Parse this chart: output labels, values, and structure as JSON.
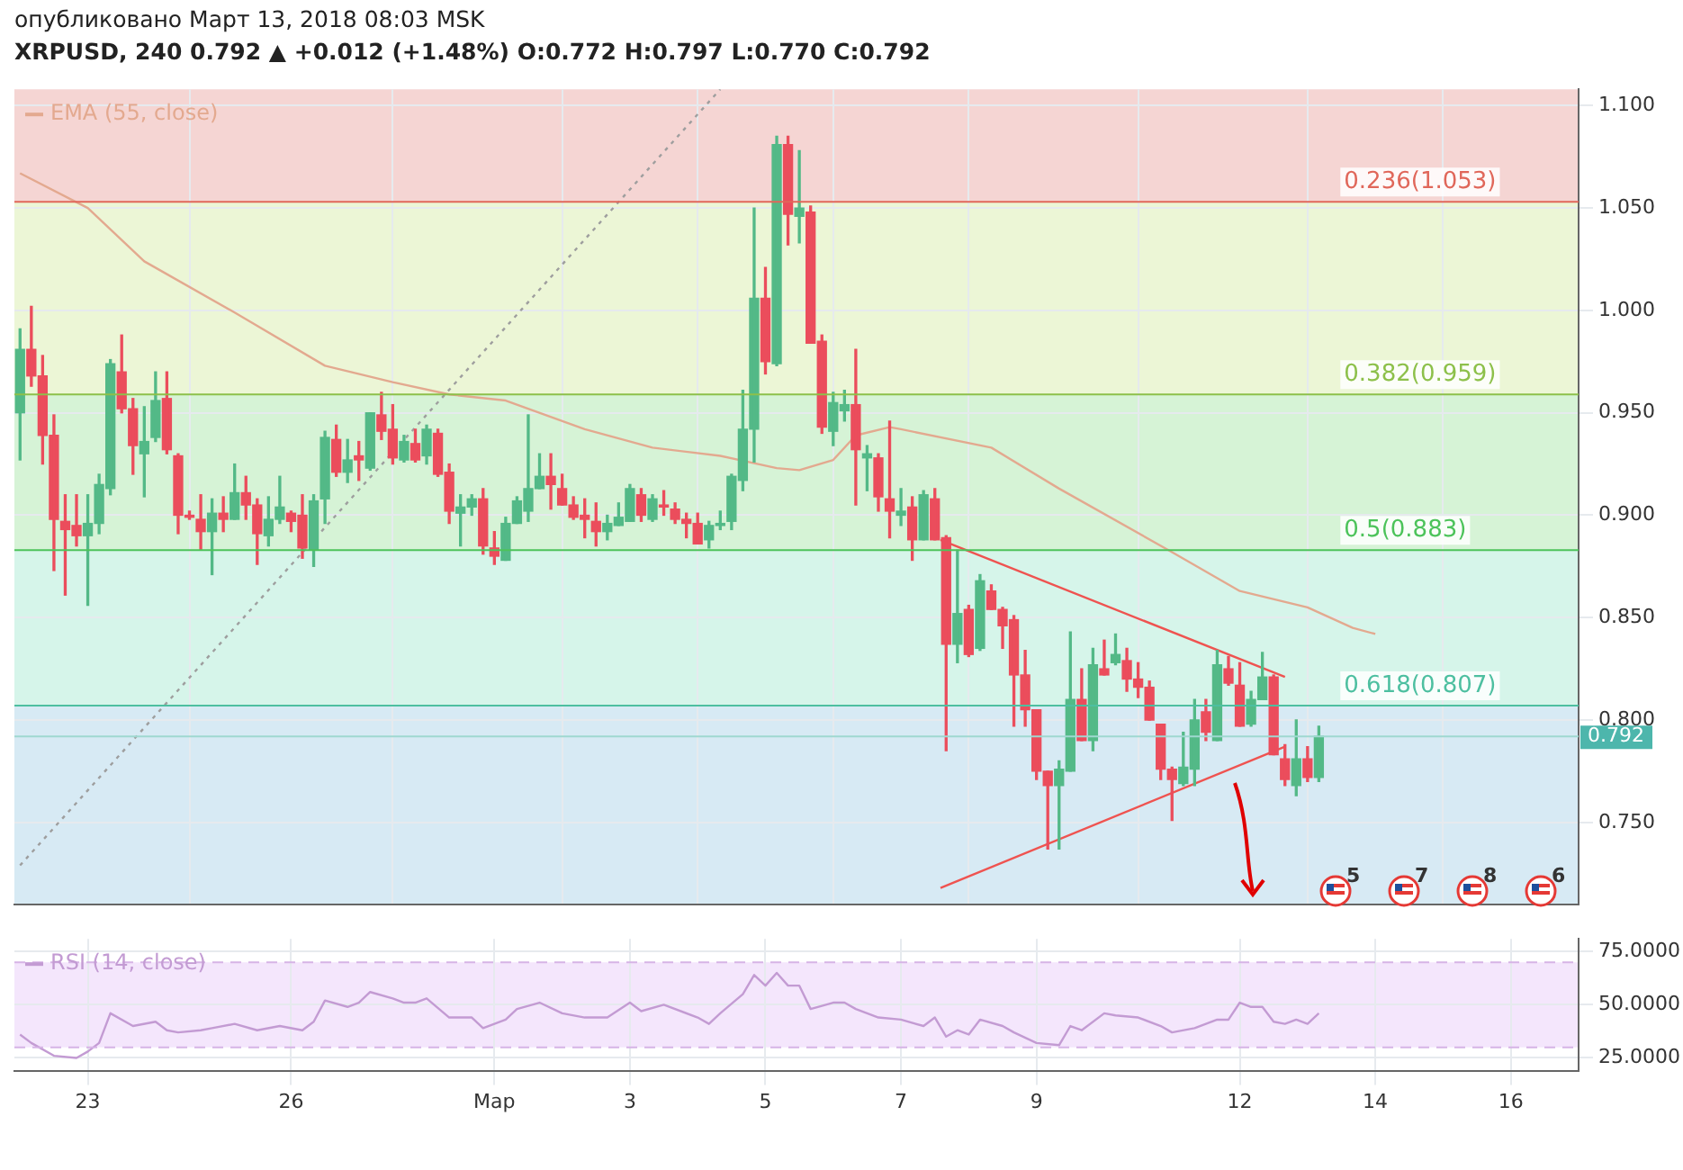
{
  "chart_data": [
    {
      "type": "candlestick",
      "subtitle": "опубликовано Март 13, 2018 08:03 MSK",
      "title": "XRPUSD, 240 0.792 ▲ +0.012 (+1.48%) O:0.772 H:0.797 L:0.770 C:0.792",
      "annotations": [
        "5",
        "7",
        "8",
        "6",
        {
          "text": "0.792",
          "y": 0.792
        }
      ],
      "x": [
        "2018-02-22T00:00",
        "2018-02-22T04:00",
        "2018-02-22T08:00",
        "2018-02-22T12:00",
        "2018-02-22T16:00",
        "2018-02-22T20:00",
        "2018-02-23T00:00",
        "2018-02-23T04:00",
        "2018-02-23T08:00",
        "2018-02-23T12:00",
        "2018-02-23T16:00",
        "2018-02-23T20:00",
        "2018-02-24T00:00",
        "2018-02-24T04:00",
        "2018-02-24T08:00",
        "2018-02-24T12:00",
        "2018-02-24T16:00",
        "2018-02-24T20:00",
        "2018-02-25T00:00",
        "2018-02-25T04:00",
        "2018-02-25T08:00",
        "2018-02-25T12:00",
        "2018-02-25T16:00",
        "2018-02-25T20:00",
        "2018-02-26T00:00",
        "2018-02-26T04:00",
        "2018-02-26T08:00",
        "2018-02-26T12:00",
        "2018-02-26T16:00",
        "2018-02-26T20:00",
        "2018-02-27T00:00",
        "2018-02-27T04:00",
        "2018-02-27T08:00",
        "2018-02-27T12:00",
        "2018-02-27T16:00",
        "2018-02-27T20:00",
        "2018-02-28T00:00",
        "2018-02-28T04:00",
        "2018-02-28T08:00",
        "2018-02-28T12:00",
        "2018-02-28T16:00",
        "2018-02-28T20:00",
        "2018-03-01T00:00",
        "2018-03-01T04:00",
        "2018-03-01T08:00",
        "2018-03-01T12:00",
        "2018-03-01T16:00",
        "2018-03-01T20:00",
        "2018-03-02T00:00",
        "2018-03-02T04:00",
        "2018-03-02T08:00",
        "2018-03-02T12:00",
        "2018-03-02T16:00",
        "2018-03-02T20:00",
        "2018-03-03T00:00",
        "2018-03-03T04:00",
        "2018-03-03T08:00",
        "2018-03-03T12:00",
        "2018-03-03T16:00",
        "2018-03-03T20:00",
        "2018-03-04T00:00",
        "2018-03-04T04:00",
        "2018-03-04T08:00",
        "2018-03-04T12:00",
        "2018-03-04T16:00",
        "2018-03-04T20:00",
        "2018-03-05T00:00",
        "2018-03-05T04:00",
        "2018-03-05T08:00",
        "2018-03-05T12:00",
        "2018-03-05T16:00",
        "2018-03-05T20:00",
        "2018-03-06T00:00",
        "2018-03-06T04:00",
        "2018-03-06T08:00",
        "2018-03-06T12:00",
        "2018-03-06T16:00",
        "2018-03-06T20:00",
        "2018-03-07T00:00",
        "2018-03-07T04:00",
        "2018-03-07T08:00",
        "2018-03-07T12:00",
        "2018-03-07T16:00",
        "2018-03-07T20:00",
        "2018-03-08T00:00",
        "2018-03-08T04:00",
        "2018-03-08T08:00",
        "2018-03-08T12:00",
        "2018-03-08T16:00",
        "2018-03-08T20:00",
        "2018-03-09T00:00",
        "2018-03-09T04:00",
        "2018-03-09T08:00",
        "2018-03-09T12:00",
        "2018-03-09T16:00",
        "2018-03-09T20:00",
        "2018-03-10T00:00",
        "2018-03-10T04:00",
        "2018-03-10T08:00",
        "2018-03-10T12:00",
        "2018-03-10T16:00",
        "2018-03-10T20:00",
        "2018-03-11T00:00",
        "2018-03-11T04:00",
        "2018-03-11T08:00",
        "2018-03-11T12:00",
        "2018-03-11T16:00",
        "2018-03-11T20:00",
        "2018-03-12T00:00",
        "2018-03-12T04:00",
        "2018-03-12T08:00",
        "2018-03-12T12:00",
        "2018-03-12T16:00",
        "2018-03-12T20:00",
        "2018-03-13T00:00",
        "2018-03-13T04:00"
      ],
      "ohlc": [
        [
          0.95,
          0.991,
          0.927,
          0.981
        ],
        [
          0.981,
          1.002,
          0.963,
          0.968
        ],
        [
          0.968,
          0.978,
          0.925,
          0.939
        ],
        [
          0.939,
          0.949,
          0.873,
          0.898
        ],
        [
          0.897,
          0.91,
          0.861,
          0.893
        ],
        [
          0.895,
          0.91,
          0.885,
          0.89
        ],
        [
          0.89,
          0.91,
          0.856,
          0.896
        ],
        [
          0.896,
          0.92,
          0.891,
          0.915
        ],
        [
          0.913,
          0.976,
          0.91,
          0.974
        ],
        [
          0.97,
          0.988,
          0.95,
          0.952
        ],
        [
          0.952,
          0.957,
          0.92,
          0.934
        ],
        [
          0.93,
          0.953,
          0.909,
          0.936
        ],
        [
          0.938,
          0.97,
          0.936,
          0.956
        ],
        [
          0.957,
          0.97,
          0.93,
          0.932
        ],
        [
          0.929,
          0.93,
          0.891,
          0.9
        ],
        [
          0.9,
          0.902,
          0.898,
          0.899
        ],
        [
          0.898,
          0.91,
          0.883,
          0.892
        ],
        [
          0.892,
          0.908,
          0.871,
          0.901
        ],
        [
          0.901,
          0.909,
          0.892,
          0.898
        ],
        [
          0.898,
          0.925,
          0.898,
          0.911
        ],
        [
          0.911,
          0.919,
          0.898,
          0.905
        ],
        [
          0.905,
          0.908,
          0.876,
          0.891
        ],
        [
          0.89,
          0.909,
          0.885,
          0.898
        ],
        [
          0.898,
          0.919,
          0.896,
          0.904
        ],
        [
          0.901,
          0.902,
          0.892,
          0.897
        ],
        [
          0.9,
          0.91,
          0.879,
          0.884
        ],
        [
          0.883,
          0.91,
          0.875,
          0.907
        ],
        [
          0.908,
          0.941,
          0.896,
          0.938
        ],
        [
          0.937,
          0.944,
          0.919,
          0.921
        ],
        [
          0.921,
          0.937,
          0.916,
          0.927
        ],
        [
          0.929,
          0.936,
          0.917,
          0.927
        ],
        [
          0.923,
          0.95,
          0.922,
          0.95
        ],
        [
          0.949,
          0.96,
          0.937,
          0.941
        ],
        [
          0.942,
          0.954,
          0.925,
          0.928
        ],
        [
          0.927,
          0.939,
          0.926,
          0.936
        ],
        [
          0.935,
          0.942,
          0.926,
          0.927
        ],
        [
          0.929,
          0.944,
          0.925,
          0.942
        ],
        [
          0.94,
          0.942,
          0.919,
          0.92
        ],
        [
          0.921,
          0.925,
          0.896,
          0.902
        ],
        [
          0.901,
          0.91,
          0.885,
          0.904
        ],
        [
          0.904,
          0.91,
          0.9,
          0.908
        ],
        [
          0.908,
          0.913,
          0.881,
          0.885
        ],
        [
          0.884,
          0.892,
          0.876,
          0.88
        ],
        [
          0.878,
          0.899,
          0.878,
          0.896
        ],
        [
          0.896,
          0.909,
          0.896,
          0.907
        ],
        [
          0.902,
          0.949,
          0.897,
          0.913
        ],
        [
          0.913,
          0.93,
          0.913,
          0.919
        ],
        [
          0.919,
          0.93,
          0.903,
          0.915
        ],
        [
          0.913,
          0.92,
          0.905,
          0.905
        ],
        [
          0.905,
          0.909,
          0.898,
          0.899
        ],
        [
          0.9,
          0.908,
          0.889,
          0.898
        ],
        [
          0.897,
          0.906,
          0.885,
          0.892
        ],
        [
          0.892,
          0.9,
          0.888,
          0.896
        ],
        [
          0.895,
          0.906,
          0.895,
          0.899
        ],
        [
          0.897,
          0.915,
          0.897,
          0.913
        ],
        [
          0.91,
          0.913,
          0.897,
          0.9
        ],
        [
          0.898,
          0.91,
          0.897,
          0.908
        ],
        [
          0.905,
          0.912,
          0.9,
          0.904
        ],
        [
          0.903,
          0.906,
          0.896,
          0.898
        ],
        [
          0.898,
          0.901,
          0.889,
          0.896
        ],
        [
          0.896,
          0.901,
          0.886,
          0.886
        ],
        [
          0.888,
          0.897,
          0.884,
          0.895
        ],
        [
          0.895,
          0.902,
          0.893,
          0.896
        ],
        [
          0.897,
          0.92,
          0.893,
          0.919
        ],
        [
          0.917,
          0.961,
          0.912,
          0.942
        ],
        [
          0.942,
          1.05,
          0.926,
          1.006
        ],
        [
          1.006,
          1.021,
          0.969,
          0.975
        ],
        [
          0.974,
          1.085,
          0.973,
          1.081
        ],
        [
          1.081,
          1.085,
          1.032,
          1.047
        ],
        [
          1.046,
          1.078,
          1.033,
          1.05
        ],
        [
          1.048,
          1.051,
          0.984,
          0.984
        ],
        [
          0.985,
          0.988,
          0.94,
          0.943
        ],
        [
          0.941,
          0.96,
          0.934,
          0.955
        ],
        [
          0.951,
          0.961,
          0.946,
          0.954
        ],
        [
          0.954,
          0.981,
          0.905,
          0.932
        ],
        [
          0.928,
          0.934,
          0.912,
          0.93
        ],
        [
          0.928,
          0.93,
          0.902,
          0.909
        ],
        [
          0.908,
          0.946,
          0.889,
          0.902
        ],
        [
          0.9,
          0.913,
          0.895,
          0.902
        ],
        [
          0.904,
          0.909,
          0.878,
          0.888
        ],
        [
          0.888,
          0.912,
          0.888,
          0.91
        ],
        [
          0.908,
          0.913,
          0.888,
          0.888
        ],
        [
          0.889,
          0.89,
          0.785,
          0.837
        ],
        [
          0.837,
          0.883,
          0.828,
          0.852
        ],
        [
          0.854,
          0.856,
          0.831,
          0.832
        ],
        [
          0.835,
          0.871,
          0.834,
          0.868
        ],
        [
          0.863,
          0.866,
          0.854,
          0.854
        ],
        [
          0.854,
          0.855,
          0.835,
          0.846
        ],
        [
          0.849,
          0.851,
          0.797,
          0.822
        ],
        [
          0.822,
          0.834,
          0.797,
          0.805
        ],
        [
          0.805,
          0.805,
          0.771,
          0.775
        ],
        [
          0.775,
          0.775,
          0.737,
          0.768
        ],
        [
          0.768,
          0.78,
          0.737,
          0.776
        ],
        [
          0.775,
          0.843,
          0.775,
          0.81
        ],
        [
          0.81,
          0.825,
          0.79,
          0.79
        ],
        [
          0.79,
          0.835,
          0.785,
          0.827
        ],
        [
          0.825,
          0.839,
          0.822,
          0.822
        ],
        [
          0.828,
          0.842,
          0.827,
          0.832
        ],
        [
          0.829,
          0.835,
          0.814,
          0.82
        ],
        [
          0.82,
          0.828,
          0.811,
          0.816
        ],
        [
          0.816,
          0.819,
          0.8,
          0.8
        ],
        [
          0.798,
          0.798,
          0.771,
          0.776
        ],
        [
          0.776,
          0.777,
          0.751,
          0.771
        ],
        [
          0.769,
          0.794,
          0.768,
          0.777
        ],
        [
          0.776,
          0.81,
          0.768,
          0.8
        ],
        [
          0.804,
          0.81,
          0.79,
          0.794
        ],
        [
          0.79,
          0.834,
          0.79,
          0.827
        ],
        [
          0.825,
          0.831,
          0.817,
          0.818
        ],
        [
          0.817,
          0.828,
          0.797,
          0.797
        ],
        [
          0.798,
          0.814,
          0.797,
          0.81
        ],
        [
          0.81,
          0.833,
          0.81,
          0.821
        ],
        [
          0.821,
          0.822,
          0.783,
          0.783
        ],
        [
          0.781,
          0.788,
          0.768,
          0.771
        ],
        [
          0.768,
          0.8,
          0.763,
          0.781
        ],
        [
          0.781,
          0.787,
          0.77,
          0.772
        ],
        [
          0.772,
          0.797,
          0.77,
          0.792
        ]
      ],
      "colors": [
        "#53b987",
        "#eb4d5c",
        "#eb4d5c",
        "#eb4d5c",
        "#eb4d5c",
        "#eb4d5c",
        "#53b987",
        "#53b987",
        "#53b987",
        "#eb4d5c",
        "#eb4d5c",
        "#53b987",
        "#53b987",
        "#eb4d5c",
        "#eb4d5c",
        "#eb4d5c",
        "#eb4d5c",
        "#53b987",
        "#eb4d5c",
        "#53b987",
        "#eb4d5c",
        "#eb4d5c",
        "#53b987",
        "#53b987",
        "#eb4d5c",
        "#eb4d5c",
        "#53b987",
        "#53b987",
        "#eb4d5c",
        "#53b987",
        "#eb4d5c",
        "#53b987",
        "#eb4d5c",
        "#eb4d5c",
        "#53b987",
        "#eb4d5c",
        "#53b987",
        "#eb4d5c",
        "#eb4d5c",
        "#53b987",
        "#53b987",
        "#eb4d5c",
        "#eb4d5c",
        "#53b987",
        "#53b987",
        "#53b987",
        "#53b987",
        "#eb4d5c",
        "#eb4d5c",
        "#eb4d5c",
        "#eb4d5c",
        "#eb4d5c",
        "#53b987",
        "#53b987",
        "#53b987",
        "#eb4d5c",
        "#53b987",
        "#eb4d5c",
        "#eb4d5c",
        "#eb4d5c",
        "#eb4d5c",
        "#53b987",
        "#53b987",
        "#53b987",
        "#53b987",
        "#53b987",
        "#eb4d5c",
        "#53b987",
        "#eb4d5c",
        "#53b987",
        "#eb4d5c",
        "#eb4d5c",
        "#53b987",
        "#53b987",
        "#eb4d5c",
        "#53b987",
        "#eb4d5c",
        "#eb4d5c",
        "#53b987",
        "#eb4d5c",
        "#53b987",
        "#eb4d5c",
        "#eb4d5c",
        "#53b987",
        "#eb4d5c",
        "#53b987",
        "#eb4d5c",
        "#eb4d5c",
        "#eb4d5c",
        "#eb4d5c",
        "#eb4d5c",
        "#eb4d5c",
        "#53b987",
        "#53b987",
        "#eb4d5c",
        "#53b987",
        "#eb4d5c",
        "#53b987",
        "#eb4d5c",
        "#eb4d5c",
        "#eb4d5c",
        "#eb4d5c",
        "#eb4d5c",
        "#53b987",
        "#53b987",
        "#eb4d5c",
        "#53b987",
        "#eb4d5c",
        "#eb4d5c",
        "#53b987",
        "#53b987",
        "#eb4d5c",
        "#eb4d5c",
        "#53b987",
        "#eb4d5c",
        "#53b987"
      ],
      "series": [
        {
          "name": "EMA (55, close)",
          "type": "line",
          "color": "#e3a98f",
          "x": [
            "2018-02-22T00:00",
            "2018-02-23T00:00",
            "2018-02-23T20:00",
            "2018-02-25T04:00",
            "2018-02-26T12:00",
            "2018-02-27T12:00",
            "2018-02-28T08:00",
            "2018-03-01T04:00",
            "2018-03-02T08:00",
            "2018-03-03T08:00",
            "2018-03-04T08:00",
            "2018-03-05T04:00",
            "2018-03-05T12:00",
            "2018-03-06T00:00",
            "2018-03-06T08:00",
            "2018-03-06T20:00",
            "2018-03-07T00:00",
            "2018-03-08T08:00",
            "2018-03-09T08:00",
            "2018-03-11T00:00",
            "2018-03-12T00:00",
            "2018-03-13T00:00",
            "2018-03-13T16:00",
            "2018-03-14T00:00"
          ],
          "values": [
            1.067,
            1.05,
            1.024,
            0.999,
            0.973,
            0.965,
            0.959,
            0.956,
            0.942,
            0.933,
            0.929,
            0.923,
            0.922,
            0.927,
            0.939,
            0.943,
            0.942,
            0.933,
            0.913,
            0.882,
            0.863,
            0.855,
            0.845,
            0.842
          ]
        },
        {
          "type": "line",
          "color": "#ef5350",
          "x": [
            "2018-03-07T14:00",
            "2018-03-12T16:00"
          ],
          "values": [
            0.888,
            0.821
          ]
        },
        {
          "type": "line",
          "color": "#ef5350",
          "x": [
            "2018-03-07T14:00",
            "2018-03-12T16:00"
          ],
          "values": [
            0.718,
            0.787
          ]
        },
        {
          "type": "line",
          "color": "#9e9e9e",
          "line_style": "dotted",
          "x": [
            "2018-02-22T00:00",
            "2018-03-04T08:00"
          ],
          "values": [
            0.729,
            1.108
          ]
        }
      ],
      "bands": [
        {
          "axis": "y",
          "from": 1.053,
          "to": 1.108,
          "color": "#f5d5d3"
        },
        {
          "axis": "y",
          "from": 0.959,
          "to": 1.053,
          "color": "#ecf6d6"
        },
        {
          "axis": "y",
          "from": 0.883,
          "to": 0.959,
          "color": "#d6f3d6"
        },
        {
          "axis": "y",
          "from": 0.807,
          "to": 0.883,
          "color": "#d6f5ea"
        },
        {
          "axis": "y",
          "from": 0.71,
          "to": 0.807,
          "color": "#d7eaf4"
        }
      ],
      "ref_lines": [
        {
          "axis": "y",
          "value": 1.053,
          "label": "0.236(1.053)",
          "color": "#e0675a"
        },
        {
          "axis": "y",
          "value": 0.959,
          "label": "0.382(0.959)",
          "color": "#8dc04a"
        },
        {
          "axis": "y",
          "value": 0.883,
          "label": "0.5(0.883)",
          "color": "#4cc35a"
        },
        {
          "axis": "y",
          "value": 0.807,
          "label": "0.618(0.807)",
          "color": "#4dbfa0"
        },
        {
          "axis": "y",
          "value": 0.792,
          "color": "#9fd8d0"
        }
      ],
      "xlim": [
        "2018-02-21T22:00",
        "2018-03-17T00:00"
      ],
      "xticks": [
        "2018-02-23",
        "2018-02-26",
        "2018-03-01",
        "2018-03-03",
        "2018-03-05",
        "2018-03-07",
        "2018-03-09",
        "2018-03-12",
        "2018-03-14",
        "2018-03-16"
      ],
      "ylim": [
        0.71,
        1.108
      ],
      "yticks": [
        {
          "value": 0.75,
          "label": "0.750"
        },
        {
          "value": 0.8,
          "label": "0.800"
        },
        {
          "value": 0.85,
          "label": "0.850"
        },
        {
          "value": 0.9,
          "label": "0.900"
        },
        {
          "value": 0.95,
          "label": "0.950"
        },
        {
          "value": 1.0,
          "label": "1.000"
        },
        {
          "value": 1.05,
          "label": "1.050"
        },
        {
          "value": 1.1,
          "label": "1.100"
        }
      ],
      "tick_labels": "y",
      "grid": true,
      "legend": "top left"
    },
    {
      "type": "line",
      "x": [
        "2018-02-22T00:00",
        "2018-02-22T04:00",
        "2018-02-22T12:00",
        "2018-02-22T20:00",
        "2018-02-23T00:00",
        "2018-02-23T04:00",
        "2018-02-23T08:00",
        "2018-02-23T16:00",
        "2018-02-24T00:00",
        "2018-02-24T04:00",
        "2018-02-24T08:00",
        "2018-02-24T16:00",
        "2018-02-24T20:00",
        "2018-02-25T04:00",
        "2018-02-25T12:00",
        "2018-02-25T20:00",
        "2018-02-26T04:00",
        "2018-02-26T08:00",
        "2018-02-26T12:00",
        "2018-02-26T20:00",
        "2018-02-27T00:00",
        "2018-02-27T04:00",
        "2018-02-27T12:00",
        "2018-02-27T16:00",
        "2018-02-27T20:00",
        "2018-02-28T00:00",
        "2018-02-28T08:00",
        "2018-02-28T16:00",
        "2018-02-28T20:00",
        "2018-03-01T04:00",
        "2018-03-01T08:00",
        "2018-03-01T16:00",
        "2018-03-02T00:00",
        "2018-03-02T08:00",
        "2018-03-02T16:00",
        "2018-03-03T00:00",
        "2018-03-03T04:00",
        "2018-03-03T12:00",
        "2018-03-04T00:00",
        "2018-03-04T04:00",
        "2018-03-04T08:00",
        "2018-03-04T16:00",
        "2018-03-04T20:00",
        "2018-03-05T00:00",
        "2018-03-05T04:00",
        "2018-03-05T08:00",
        "2018-03-05T12:00",
        "2018-03-05T16:00",
        "2018-03-06T00:00",
        "2018-03-06T04:00",
        "2018-03-06T08:00",
        "2018-03-06T16:00",
        "2018-03-07T00:00",
        "2018-03-07T08:00",
        "2018-03-07T12:00",
        "2018-03-07T16:00",
        "2018-03-07T20:00",
        "2018-03-08T00:00",
        "2018-03-08T04:00",
        "2018-03-08T12:00",
        "2018-03-08T16:00",
        "2018-03-09T00:00",
        "2018-03-09T08:00",
        "2018-03-09T12:00",
        "2018-03-09T16:00",
        "2018-03-10T00:00",
        "2018-03-10T04:00",
        "2018-03-10T12:00",
        "2018-03-10T20:00",
        "2018-03-11T00:00",
        "2018-03-11T08:00",
        "2018-03-11T16:00",
        "2018-03-11T20:00",
        "2018-03-12T00:00",
        "2018-03-12T04:00",
        "2018-03-12T08:00",
        "2018-03-12T12:00",
        "2018-03-12T16:00",
        "2018-03-12T20:00",
        "2018-03-13T00:00",
        "2018-03-13T04:00"
      ],
      "series": [
        {
          "name": "RSI (14, close)",
          "color": "#c39bd3",
          "values": [
            36,
            32,
            26,
            25,
            28,
            32,
            46,
            40,
            42,
            38,
            37,
            38,
            39,
            41,
            38,
            40,
            38,
            42,
            52,
            49,
            51,
            56,
            53,
            51,
            51,
            53,
            44,
            44,
            39,
            43,
            48,
            51,
            46,
            44,
            44,
            51,
            47,
            50,
            44,
            41,
            46,
            55,
            64,
            59,
            65,
            59,
            59,
            48,
            51,
            51,
            48,
            44,
            43,
            40,
            44,
            35,
            38,
            36,
            43,
            40,
            37,
            32,
            31,
            40,
            38,
            46,
            45,
            44,
            40,
            37,
            39,
            43,
            43,
            51,
            49,
            49,
            42,
            41,
            43,
            41,
            46
          ]
        }
      ],
      "bands": [
        {
          "axis": "y",
          "from": 30,
          "to": 70,
          "color": "#f4e6fc"
        }
      ],
      "ref_lines": [
        {
          "axis": "y",
          "value": 70,
          "color": "#d6b4e6",
          "line_style": "dashed"
        },
        {
          "axis": "y",
          "value": 30,
          "color": "#d6b4e6",
          "line_style": "dashed"
        }
      ],
      "xlim": [
        "2018-02-21T22:00",
        "2018-03-17T00:00"
      ],
      "xticks": [
        {
          "value": "2018-02-23",
          "label": "23"
        },
        {
          "value": "2018-02-26",
          "label": "26"
        },
        {
          "value": "2018-03-01",
          "label": "Мар"
        },
        {
          "value": "2018-03-03",
          "label": "3"
        },
        {
          "value": "2018-03-05",
          "label": "5"
        },
        {
          "value": "2018-03-07",
          "label": "7"
        },
        {
          "value": "2018-03-09",
          "label": "9"
        },
        {
          "value": "2018-03-12",
          "label": "12"
        },
        {
          "value": "2018-03-14",
          "label": "14"
        },
        {
          "value": "2018-03-16",
          "label": "16"
        }
      ],
      "ylim": [
        19,
        81
      ],
      "yticks": [
        {
          "value": 25,
          "label": "25.0000"
        },
        {
          "value": 50,
          "label": "50.0000"
        },
        {
          "value": 75,
          "label": "75.0000"
        }
      ],
      "grid": true,
      "legend": "top left"
    }
  ]
}
